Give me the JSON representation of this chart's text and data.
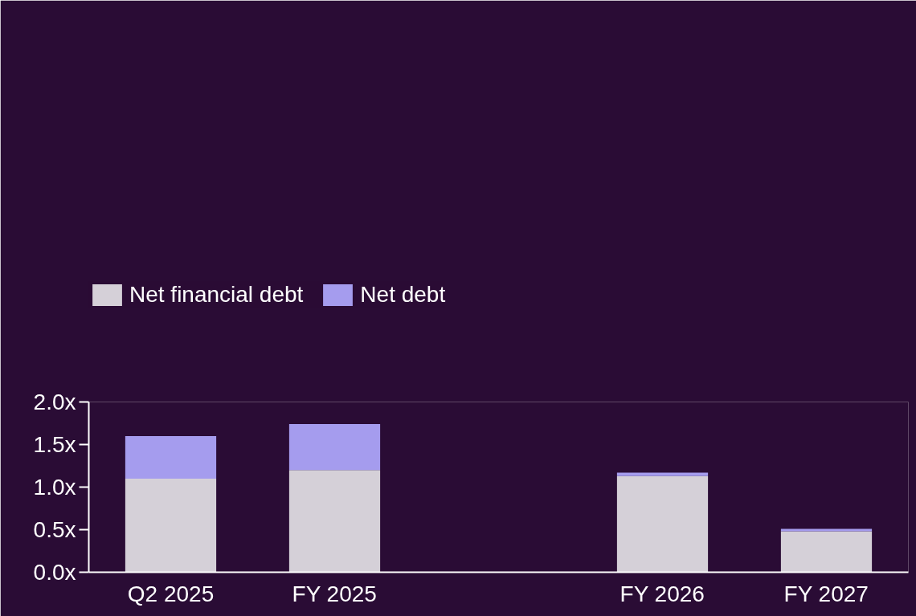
{
  "chart_data": {
    "type": "bar",
    "stacked": true,
    "categories": [
      "Q2 2025",
      "FY 2025",
      null,
      "FY 2026",
      "FY 2027"
    ],
    "series": [
      {
        "name": "Net financial debt",
        "color": "#d5d0d8",
        "values": [
          1.1,
          1.2,
          null,
          1.13,
          0.48
        ]
      },
      {
        "name": "Net debt",
        "color": "#a59cee",
        "values": [
          0.5,
          0.54,
          null,
          0.04,
          0.03
        ]
      }
    ],
    "ylim": [
      0,
      2.0
    ],
    "yticks": [
      {
        "value": 0,
        "label": "0.0x"
      },
      {
        "value": 0.5,
        "label": "0.5x"
      },
      {
        "value": 1.0,
        "label": "1.0x"
      },
      {
        "value": 1.5,
        "label": "1.5x"
      },
      {
        "value": 2.0,
        "label": "2.0x"
      }
    ],
    "grid": false,
    "legend": "top left"
  }
}
